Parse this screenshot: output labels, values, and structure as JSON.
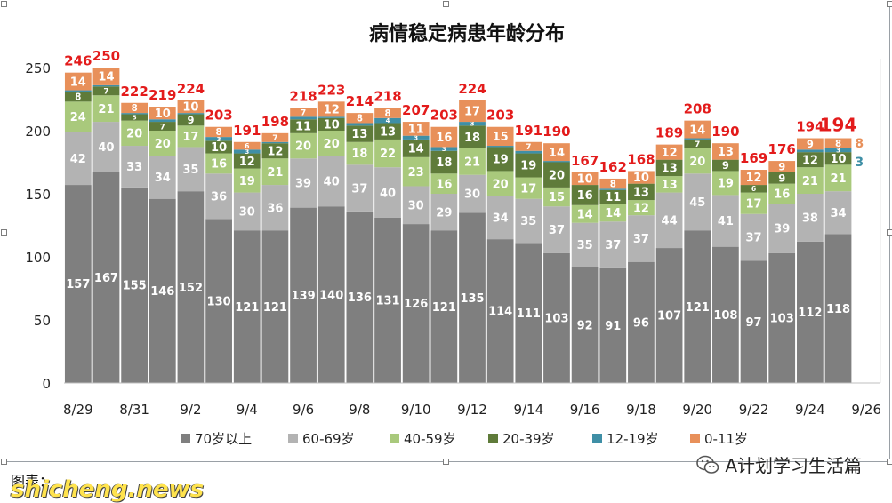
{
  "colors": {
    "s70": "#7f7f7f",
    "s60": "#b3b3b3",
    "s40": "#a9c97c",
    "s20": "#5f7b3a",
    "s12": "#3f8fa6",
    "s0": "#e8905a",
    "total": "#e31b1b",
    "segtext": "#ffffff"
  },
  "chart_data": {
    "type": "bar",
    "stacked": true,
    "title": "病情稳定病患年龄分布",
    "ylim": [
      0,
      250
    ],
    "yticks": [
      0,
      50,
      100,
      150,
      200,
      250
    ],
    "grid": false,
    "legend_position": "bottom",
    "categories": [
      "8/29",
      "8/30",
      "8/31",
      "9/1",
      "9/2",
      "9/3",
      "9/4",
      "9/5",
      "9/6",
      "9/7",
      "9/8",
      "9/9",
      "9/10",
      "9/11",
      "9/12",
      "9/13",
      "9/14",
      "9/15",
      "9/16",
      "9/17",
      "9/18",
      "9/19",
      "9/20",
      "9/21",
      "9/22",
      "9/23",
      "9/24",
      "9/25",
      "9/26"
    ],
    "x_tick_labels": [
      "8/29",
      "8/31",
      "9/2",
      "9/4",
      "9/6",
      "9/8",
      "9/10",
      "9/12",
      "9/14",
      "9/16",
      "9/18",
      "9/20",
      "9/22",
      "9/24",
      "9/26"
    ],
    "series": [
      {
        "name": "70岁以上",
        "color_key": "s70",
        "values": [
          157,
          167,
          155,
          146,
          152,
          130,
          121,
          121,
          139,
          140,
          136,
          131,
          126,
          121,
          135,
          114,
          111,
          103,
          92,
          91,
          96,
          107,
          121,
          108,
          97,
          103,
          112,
          118,
          null
        ]
      },
      {
        "name": "60-69岁",
        "color_key": "s60",
        "values": [
          42,
          40,
          33,
          34,
          35,
          36,
          30,
          36,
          39,
          40,
          37,
          40,
          30,
          29,
          30,
          34,
          35,
          37,
          35,
          37,
          37,
          44,
          45,
          41,
          37,
          39,
          38,
          34,
          null
        ]
      },
      {
        "name": "40-59岁",
        "color_key": "s40",
        "values": [
          24,
          21,
          20,
          20,
          17,
          16,
          19,
          21,
          20,
          20,
          18,
          22,
          23,
          16,
          21,
          20,
          17,
          15,
          14,
          14,
          12,
          13,
          20,
          19,
          17,
          16,
          21,
          21,
          null
        ]
      },
      {
        "name": "20-39岁",
        "color_key": "s20",
        "values": [
          8,
          7,
          5,
          7,
          9,
          10,
          12,
          12,
          11,
          10,
          13,
          13,
          14,
          18,
          18,
          19,
          19,
          20,
          16,
          11,
          13,
          13,
          7,
          9,
          6,
          9,
          12,
          10,
          null
        ]
      },
      {
        "name": "12-19岁",
        "color_key": "s12",
        "values": [
          1,
          1,
          1,
          2,
          1,
          3,
          3,
          1,
          2,
          1,
          2,
          4,
          3,
          3,
          3,
          1,
          2,
          1,
          0,
          1,
          0,
          0,
          1,
          0,
          0,
          0,
          2,
          3,
          null
        ]
      },
      {
        "name": "0-11岁",
        "color_key": "s0",
        "values": [
          14,
          14,
          8,
          10,
          10,
          8,
          6,
          7,
          7,
          12,
          8,
          8,
          11,
          16,
          17,
          15,
          7,
          14,
          10,
          8,
          10,
          12,
          14,
          13,
          12,
          9,
          9,
          8,
          null
        ]
      }
    ],
    "totals": [
      246,
      250,
      222,
      219,
      224,
      203,
      191,
      198,
      218,
      223,
      214,
      218,
      207,
      203,
      224,
      203,
      191,
      190,
      167,
      162,
      168,
      189,
      208,
      190,
      169,
      176,
      194,
      194,
      null
    ],
    "highlight_index": 27
  },
  "footer": {
    "left_label": "图表：",
    "watermark": "shicheng.news",
    "wechat_account": "A计划学习生活篇"
  }
}
